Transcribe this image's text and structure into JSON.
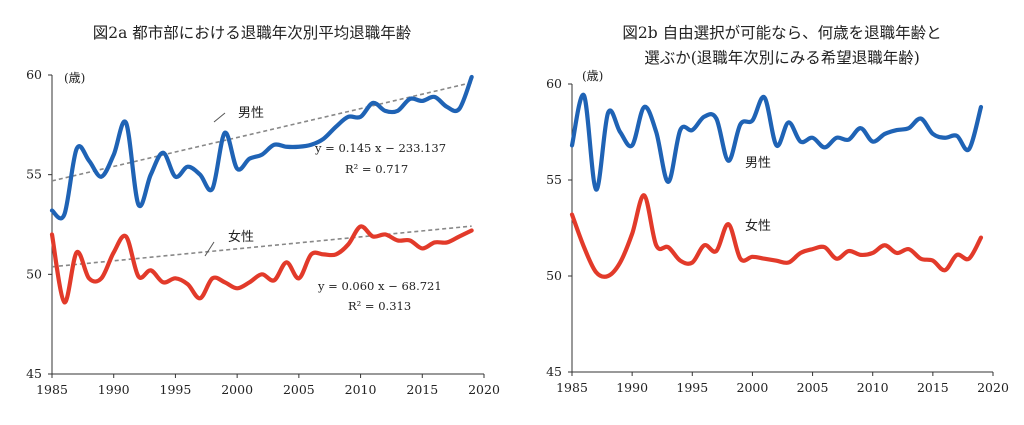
{
  "chart_data": [
    {
      "type": "line",
      "title": "図2a 都市部における退職年次別平均退職年齢",
      "ylabel": "(歳)",
      "xlim": [
        1985,
        2020
      ],
      "ylim": [
        45,
        60
      ],
      "x_ticks": [
        "1985",
        "1990",
        "1995",
        "2000",
        "2005",
        "2010",
        "2015",
        "2020"
      ],
      "y_ticks": [
        "45",
        "50",
        "55",
        "60"
      ],
      "grid": false,
      "series": [
        {
          "name": "男性",
          "color": "#1f63b5",
          "x": [
            1985,
            1986,
            1987,
            1988,
            1989,
            1990,
            1991,
            1992,
            1993,
            1994,
            1995,
            1996,
            1997,
            1998,
            1999,
            2000,
            2001,
            2002,
            2003,
            2004,
            2005,
            2006,
            2007,
            2008,
            2009,
            2010,
            2011,
            2012,
            2013,
            2014,
            2015,
            2016,
            2017,
            2018,
            2019
          ],
          "y": [
            53.2,
            53.0,
            56.3,
            55.7,
            54.9,
            56.0,
            57.6,
            53.5,
            55.0,
            56.1,
            54.9,
            55.4,
            55.0,
            54.3,
            57.1,
            55.3,
            55.8,
            56.0,
            56.5,
            56.4,
            56.4,
            56.5,
            56.8,
            57.4,
            57.9,
            57.9,
            58.6,
            58.2,
            58.2,
            58.8,
            58.7,
            58.9,
            58.4,
            58.3,
            59.9
          ]
        },
        {
          "name": "女性",
          "color": "#e23a2a",
          "x": [
            1985,
            1986,
            1987,
            1988,
            1989,
            1990,
            1991,
            1992,
            1993,
            1994,
            1995,
            1996,
            1997,
            1998,
            1999,
            2000,
            2001,
            2002,
            2003,
            2004,
            2005,
            2006,
            2007,
            2008,
            2009,
            2010,
            2011,
            2012,
            2013,
            2014,
            2015,
            2016,
            2017,
            2018,
            2019
          ],
          "y": [
            52.0,
            48.6,
            51.1,
            49.8,
            49.8,
            51.1,
            51.9,
            49.9,
            50.2,
            49.6,
            49.8,
            49.5,
            48.8,
            49.8,
            49.6,
            49.3,
            49.6,
            50.0,
            49.7,
            50.6,
            49.8,
            51.0,
            51.0,
            51.0,
            51.5,
            52.4,
            51.9,
            52.0,
            51.7,
            51.7,
            51.3,
            51.6,
            51.6,
            51.9,
            52.2
          ]
        }
      ],
      "trendlines": [
        {
          "series": "男性",
          "slope": 0.145,
          "intercept": -233.137,
          "color": "#888888",
          "style": "dashed"
        },
        {
          "series": "女性",
          "slope": 0.06,
          "intercept": -68.721,
          "color": "#888888",
          "style": "dashed"
        }
      ],
      "annotations": [
        {
          "text": "男性"
        },
        {
          "text": "y = 0.145 x − 233.137"
        },
        {
          "text": "R² = 0.717"
        },
        {
          "text": "女性"
        },
        {
          "text": "y = 0.060 x − 68.721"
        },
        {
          "text": "R² = 0.313"
        }
      ]
    },
    {
      "type": "line",
      "title_lines": [
        "図2b 自由選択が可能なら、何歳を退職年齢と",
        "選ぶか(退職年次別にみる希望退職年齢)"
      ],
      "ylabel": "(歳)",
      "xlim": [
        1985,
        2020
      ],
      "ylim": [
        45,
        60
      ],
      "x_ticks": [
        "1985",
        "1990",
        "1995",
        "2000",
        "2005",
        "2010",
        "2015",
        "2020"
      ],
      "y_ticks": [
        "45",
        "50",
        "55",
        "60"
      ],
      "grid": false,
      "series": [
        {
          "name": "男性",
          "color": "#1f63b5",
          "x": [
            1985,
            1986,
            1987,
            1988,
            1989,
            1990,
            1991,
            1992,
            1993,
            1994,
            1995,
            1996,
            1997,
            1998,
            1999,
            2000,
            2001,
            2002,
            2003,
            2004,
            2005,
            2006,
            2007,
            2008,
            2009,
            2010,
            2011,
            2012,
            2013,
            2014,
            2015,
            2016,
            2017,
            2018,
            2019
          ],
          "y": [
            56.8,
            59.4,
            54.5,
            58.5,
            57.5,
            56.8,
            58.8,
            57.5,
            54.9,
            57.6,
            57.6,
            58.3,
            58.2,
            56.0,
            57.9,
            58.1,
            59.3,
            56.8,
            58.0,
            57.0,
            57.2,
            56.7,
            57.2,
            57.1,
            57.7,
            57.0,
            57.4,
            57.6,
            57.7,
            58.2,
            57.4,
            57.2,
            57.3,
            56.6,
            58.8
          ]
        },
        {
          "name": "女性",
          "color": "#e23a2a",
          "x": [
            1985,
            1986,
            1987,
            1988,
            1989,
            1990,
            1991,
            1992,
            1993,
            1994,
            1995,
            1996,
            1997,
            1998,
            1999,
            2000,
            2001,
            2002,
            2003,
            2004,
            2005,
            2006,
            2007,
            2008,
            2009,
            2010,
            2011,
            2012,
            2013,
            2014,
            2015,
            2016,
            2017,
            2018,
            2019
          ],
          "y": [
            53.2,
            51.5,
            50.2,
            50.0,
            50.7,
            52.2,
            54.2,
            51.6,
            51.5,
            50.8,
            50.7,
            51.6,
            51.3,
            52.7,
            50.9,
            51.0,
            50.9,
            50.8,
            50.7,
            51.2,
            51.4,
            51.5,
            50.9,
            51.3,
            51.1,
            51.2,
            51.6,
            51.2,
            51.4,
            50.9,
            50.8,
            50.3,
            51.1,
            50.9,
            52.0
          ]
        }
      ],
      "annotations": [
        {
          "text": "男性"
        },
        {
          "text": "女性"
        }
      ]
    }
  ]
}
